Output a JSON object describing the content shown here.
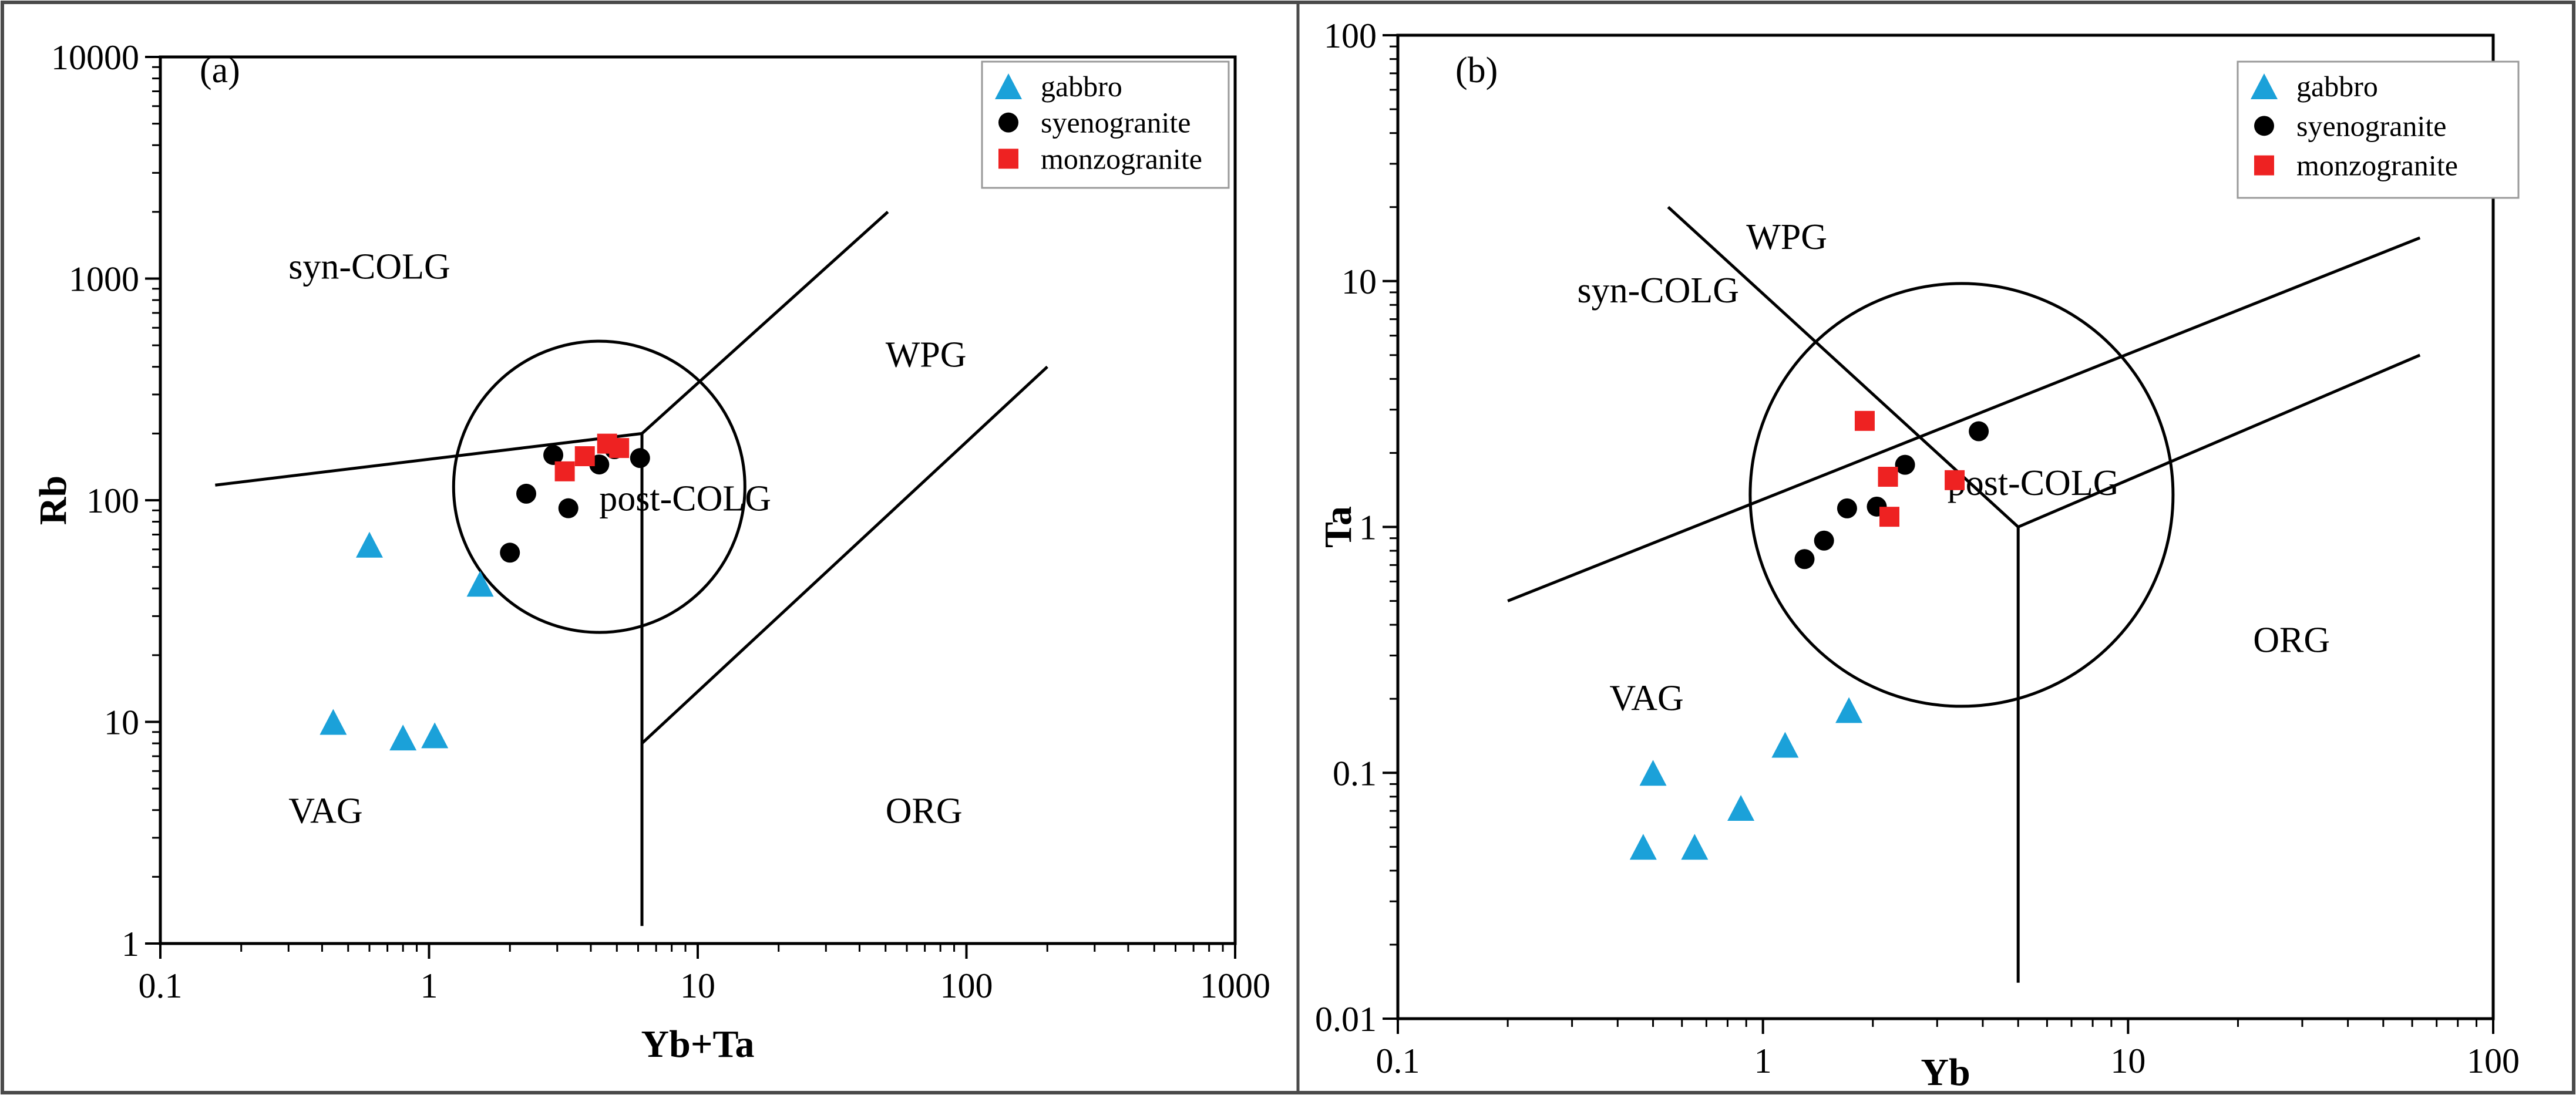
{
  "figure": {
    "description": "Rb vs Yb+Ta and Ta vs Yb tectonic discrimination diagrams"
  },
  "chart_data": [
    {
      "type": "scatter",
      "panel_label": "(a)",
      "xlabel": "Yb+Ta",
      "ylabel": "Rb",
      "xscale": "log",
      "yscale": "log",
      "xlim": [
        0.1,
        1000
      ],
      "ylim": [
        1,
        10000
      ],
      "xticks": [
        {
          "v": 0.1,
          "label": "0.1"
        },
        {
          "v": 1,
          "label": "1"
        },
        {
          "v": 10,
          "label": "10"
        },
        {
          "v": 100,
          "label": "100"
        },
        {
          "v": 1000,
          "label": "1000"
        }
      ],
      "yticks": [
        {
          "v": 1,
          "label": "1"
        },
        {
          "v": 10,
          "label": "10"
        },
        {
          "v": 100,
          "label": "100"
        },
        {
          "v": 1000,
          "label": "1000"
        },
        {
          "v": 10000,
          "label": "10000"
        }
      ],
      "fields": [
        {
          "label": "syn-COLG",
          "x": 0.3,
          "y": 1000
        },
        {
          "label": "WPG",
          "x": 50,
          "y": 400
        },
        {
          "label": "post-COLG",
          "x": 4.3,
          "y": 90
        },
        {
          "label": "VAG",
          "x": 0.3,
          "y": 3.5
        },
        {
          "label": "ORG",
          "x": 50,
          "y": 3.5
        }
      ],
      "boundaries": [
        [
          [
            0.16,
            117
          ],
          [
            6.2,
            200
          ]
        ],
        [
          [
            6.2,
            200
          ],
          [
            51,
            2000
          ]
        ],
        [
          [
            6.2,
            200
          ],
          [
            6.2,
            1.2
          ]
        ],
        [
          [
            6.2,
            8
          ],
          [
            200,
            400
          ]
        ]
      ],
      "circle": {
        "x": 4.3,
        "y": 115
      },
      "legend": {
        "position": "top-right",
        "entries": [
          "gabbro",
          "syenogranite",
          "monzogranite"
        ]
      },
      "series": [
        {
          "name": "gabbro",
          "marker": "triangle",
          "color": "#1ba1d9",
          "points": [
            [
              0.6,
              63
            ],
            [
              1.55,
              42
            ],
            [
              0.44,
              10
            ],
            [
              0.8,
              8.5
            ],
            [
              1.05,
              8.7
            ]
          ]
        },
        {
          "name": "syenogranite",
          "marker": "circle",
          "color": "#000000",
          "points": [
            [
              2.9,
              160
            ],
            [
              2.3,
              107
            ],
            [
              3.3,
              92
            ],
            [
              2.0,
              58
            ],
            [
              4.3,
              145
            ],
            [
              6.1,
              155
            ],
            [
              4.9,
              170
            ]
          ]
        },
        {
          "name": "monzogranite",
          "marker": "square",
          "color": "#ee2222",
          "points": [
            [
              3.2,
              135
            ],
            [
              3.8,
              158
            ],
            [
              4.6,
              180
            ],
            [
              5.1,
              172
            ]
          ]
        }
      ]
    },
    {
      "type": "scatter",
      "panel_label": "(b)",
      "xlabel": "Yb",
      "ylabel": "Ta",
      "xscale": "log",
      "yscale": "log",
      "xlim": [
        0.1,
        100
      ],
      "ylim": [
        0.01,
        100
      ],
      "xticks": [
        {
          "v": 0.1,
          "label": "0.1"
        },
        {
          "v": 1,
          "label": "1"
        },
        {
          "v": 10,
          "label": "10"
        },
        {
          "v": 100,
          "label": "100"
        }
      ],
      "yticks": [
        {
          "v": 0.01,
          "label": "0.01"
        },
        {
          "v": 0.1,
          "label": "0.1"
        },
        {
          "v": 1,
          "label": "1"
        },
        {
          "v": 10,
          "label": "10"
        },
        {
          "v": 100,
          "label": "100"
        }
      ],
      "fields": [
        {
          "label": "WPG",
          "x": 0.9,
          "y": 13.5
        },
        {
          "label": "syn-COLG",
          "x": 0.31,
          "y": 8.2
        },
        {
          "label": "post-COLG",
          "x": 3.2,
          "y": 1.35
        },
        {
          "label": "VAG",
          "x": 0.38,
          "y": 0.18
        },
        {
          "label": "ORG",
          "x": 22,
          "y": 0.31
        }
      ],
      "boundaries": [
        [
          [
            0.2,
            0.5
          ],
          [
            63,
            15
          ]
        ],
        [
          [
            0.55,
            20
          ],
          [
            5,
            1
          ]
        ],
        [
          [
            5,
            1
          ],
          [
            63,
            5
          ]
        ],
        [
          [
            5,
            1
          ],
          [
            5,
            0.014
          ]
        ]
      ],
      "circle": {
        "x": 3.5,
        "y": 1.35
      },
      "legend": {
        "position": "top-right",
        "entries": [
          "gabbro",
          "syenogranite",
          "monzogranite"
        ]
      },
      "series": [
        {
          "name": "gabbro",
          "marker": "triangle",
          "color": "#1ba1d9",
          "points": [
            [
              0.5,
              0.1
            ],
            [
              0.47,
              0.05
            ],
            [
              0.65,
              0.05
            ],
            [
              0.87,
              0.072
            ],
            [
              1.15,
              0.13
            ],
            [
              1.72,
              0.18
            ]
          ]
        },
        {
          "name": "syenogranite",
          "marker": "circle",
          "color": "#000000",
          "points": [
            [
              1.3,
              0.74
            ],
            [
              1.47,
              0.88
            ],
            [
              1.7,
              1.19
            ],
            [
              2.05,
              1.21
            ],
            [
              2.45,
              1.79
            ],
            [
              3.9,
              2.45
            ]
          ]
        },
        {
          "name": "monzogranite",
          "marker": "square",
          "color": "#ee2222",
          "points": [
            [
              1.9,
              2.7
            ],
            [
              2.2,
              1.6
            ],
            [
              2.22,
              1.1
            ],
            [
              3.35,
              1.55
            ]
          ]
        }
      ]
    }
  ]
}
